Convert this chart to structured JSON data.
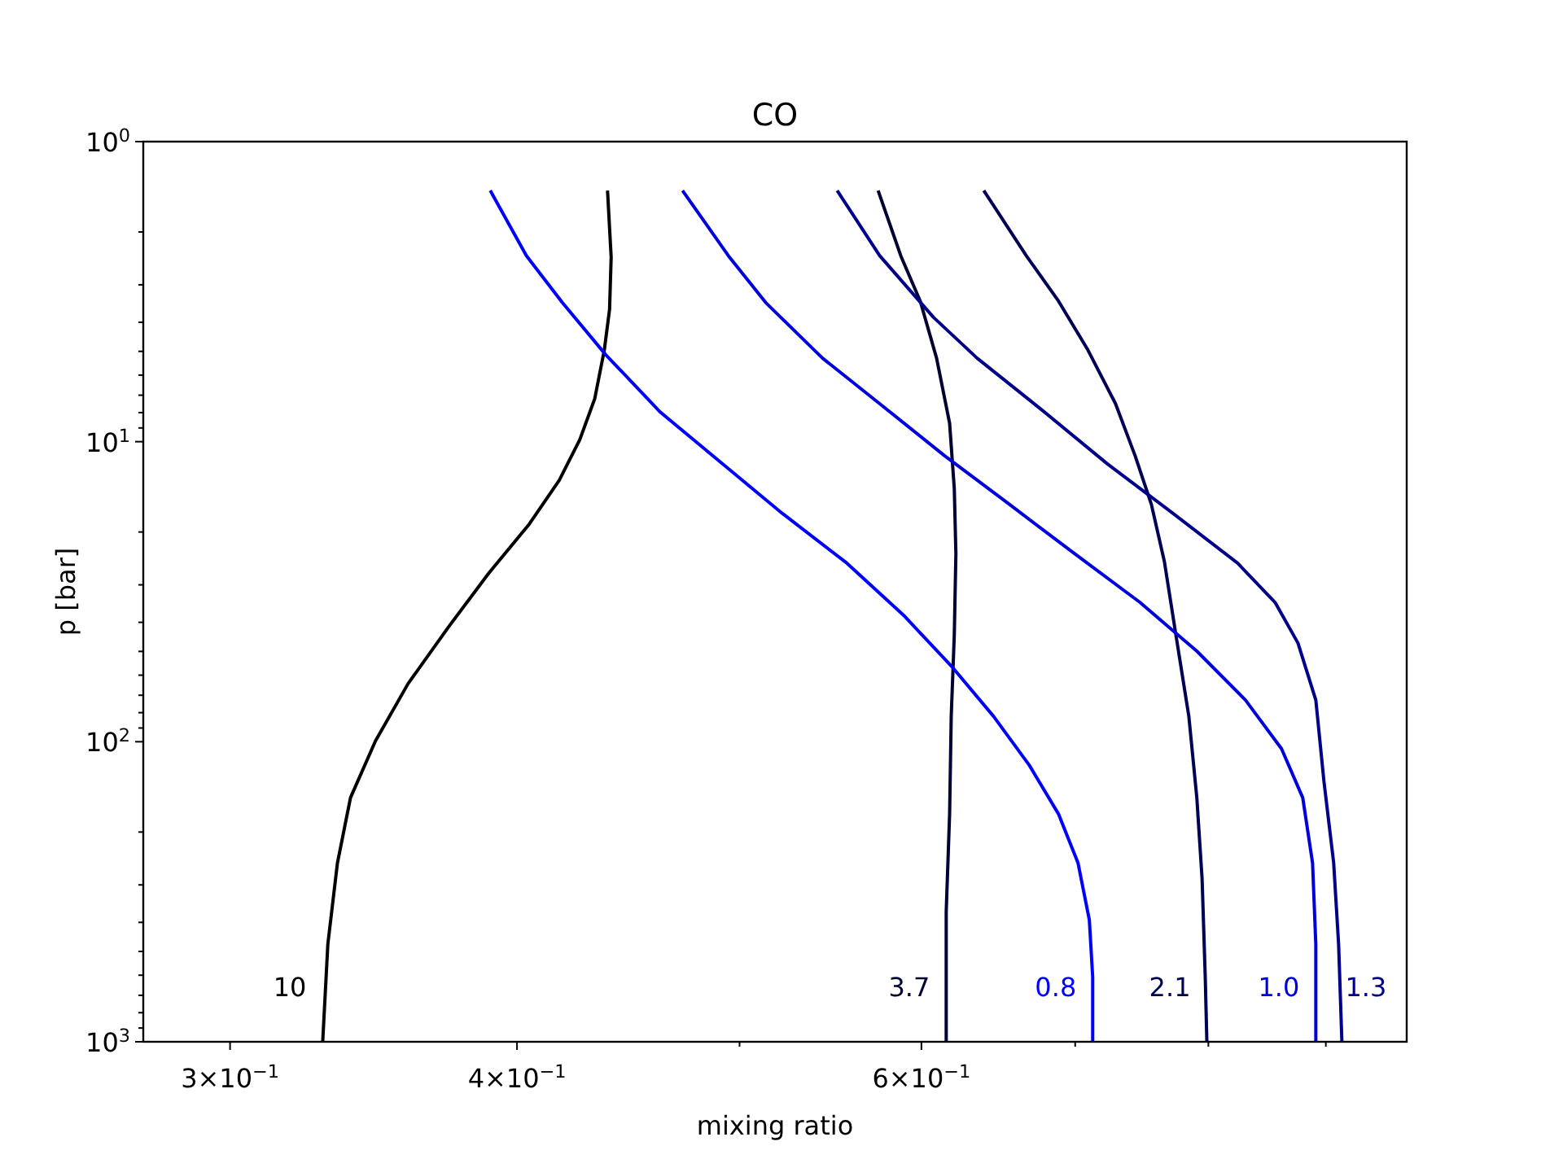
{
  "chart_data": {
    "type": "line",
    "title": "CO",
    "xlabel": "mixing ratio",
    "ylabel": "p [bar]",
    "log": "xy",
    "grid": false,
    "marker": "none",
    "line_style": "solid",
    "xlim": [
      0.275,
      0.976
    ],
    "ylim": [
      1000,
      1
    ],
    "xticks": [
      {
        "value": 0.3,
        "label": "3×10$^{−1}$"
      },
      {
        "value": 0.4,
        "label": "4×10$^{−1}$"
      },
      {
        "value": 0.5,
        "label": null
      },
      {
        "value": 0.6,
        "label": "6×10$^{−1}$"
      },
      {
        "value": 0.7,
        "label": null
      },
      {
        "value": 0.8,
        "label": null
      },
      {
        "value": 0.9,
        "label": null
      }
    ],
    "yticks": [
      {
        "value": 1,
        "label": "10$^{0}$"
      },
      {
        "value": 2,
        "label": null
      },
      {
        "value": 3,
        "label": null
      },
      {
        "value": 4,
        "label": null
      },
      {
        "value": 5,
        "label": null
      },
      {
        "value": 6,
        "label": null
      },
      {
        "value": 7,
        "label": null
      },
      {
        "value": 8,
        "label": null
      },
      {
        "value": 9,
        "label": null
      },
      {
        "value": 10,
        "label": "10$^{1}$"
      },
      {
        "value": 20,
        "label": null
      },
      {
        "value": 30,
        "label": null
      },
      {
        "value": 40,
        "label": null
      },
      {
        "value": 50,
        "label": null
      },
      {
        "value": 60,
        "label": null
      },
      {
        "value": 70,
        "label": null
      },
      {
        "value": 80,
        "label": null
      },
      {
        "value": 90,
        "label": null
      },
      {
        "value": 100,
        "label": "10$^{2}$"
      },
      {
        "value": 200,
        "label": null
      },
      {
        "value": 300,
        "label": null
      },
      {
        "value": 400,
        "label": null
      },
      {
        "value": 500,
        "label": null
      },
      {
        "value": 600,
        "label": null
      },
      {
        "value": 700,
        "label": null
      },
      {
        "value": 800,
        "label": null
      },
      {
        "value": 900,
        "label": null
      },
      {
        "value": 1000,
        "label": "10$^{3}$"
      }
    ],
    "series": [
      {
        "name": "10",
        "color": "#000000",
        "x": [
          0.438,
          0.4396,
          0.4389,
          0.4366,
          0.4324,
          0.426,
          0.4173,
          0.405,
          0.3889,
          0.3735,
          0.3586,
          0.3471,
          0.3385,
          0.3341,
          0.3309,
          0.3292
        ],
        "values": [
          1.455,
          2.43,
          3.62,
          4.95,
          7.2,
          9.84,
          13.45,
          18.8,
          27.4,
          41.4,
          64.1,
          99.3,
          153.7,
          253.6,
          473,
          1000
        ]
      },
      {
        "name": "3.7",
        "color": "#000033",
        "x": [
          0.5745,
          0.5877,
          0.5993,
          0.6092,
          0.6172,
          0.6201,
          0.6211,
          0.6201,
          0.6182,
          0.6172,
          0.6151,
          0.6151
        ],
        "values": [
          1.455,
          2.4,
          3.4,
          5.27,
          8.68,
          14.31,
          23.6,
          44.1,
          82.3,
          174.1,
          368,
          1000
        ]
      },
      {
        "name": "0.8",
        "color": "#0000ff",
        "x": [
          0.3894,
          0.4038,
          0.4186,
          0.4373,
          0.4617,
          0.4887,
          0.5217,
          0.5568,
          0.5894,
          0.6191,
          0.645,
          0.6685,
          0.6884,
          0.702,
          0.71,
          0.7124,
          0.7124
        ],
        "values": [
          1.455,
          2.4,
          3.44,
          5.14,
          7.96,
          11.43,
          17.3,
          25.4,
          37.9,
          56.6,
          82.3,
          119.7,
          174.1,
          253.6,
          392,
          607,
          1000
        ]
      },
      {
        "name": "2.1",
        "color": "#000055",
        "x": [
          0.6387,
          0.6665,
          0.6884,
          0.709,
          0.7289,
          0.7434,
          0.7556,
          0.7655,
          0.7744,
          0.7845,
          0.7908,
          0.795,
          0.7975,
          0.7988
        ],
        "values": [
          1.455,
          2.4,
          3.4,
          4.95,
          7.47,
          11.15,
          16.2,
          25.1,
          44.1,
          82.3,
          153.7,
          287,
          607,
          1000
        ]
      },
      {
        "name": "1.0",
        "color": "#0000dd",
        "x": [
          0.4722,
          0.4944,
          0.5133,
          0.5434,
          0.5754,
          0.6142,
          0.6555,
          0.6995,
          0.7469,
          0.7908,
          0.8303,
          0.8609,
          0.8794,
          0.8881,
          0.891,
          0.891
        ],
        "values": [
          1.455,
          2.4,
          3.44,
          5.27,
          7.47,
          11.15,
          16.2,
          23.6,
          34.3,
          49.9,
          72.6,
          105.6,
          153.7,
          253.6,
          473,
          1000
        ]
      },
      {
        "name": "1.3",
        "color": "#00008b",
        "x": [
          0.5514,
          0.5754,
          0.6073,
          0.6345,
          0.6773,
          0.7231,
          0.7718,
          0.8238,
          0.8553,
          0.8752,
          0.891,
          0.8983,
          0.9071,
          0.9116,
          0.9146
        ],
        "values": [
          1.455,
          2.4,
          3.85,
          5.27,
          7.86,
          11.87,
          17.3,
          25.4,
          34.3,
          46.9,
          72.6,
          135.6,
          253.6,
          473,
          1000
        ]
      }
    ]
  }
}
